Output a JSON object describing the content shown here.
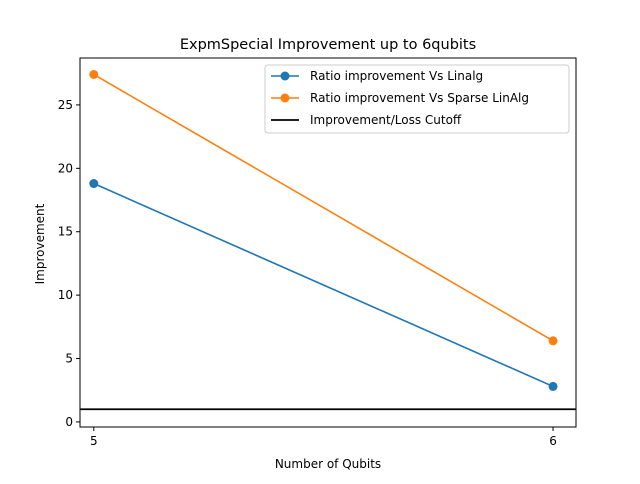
{
  "chart_data": {
    "type": "line",
    "title": "ExpmSpecial Improvement up to 6qubits",
    "xlabel": "Number of Qubits",
    "ylabel": "Improvement",
    "x": [
      5,
      6
    ],
    "xlim": [
      4.97,
      6.05
    ],
    "ylim": [
      -0.4,
      28.7
    ],
    "xticks": [
      5,
      6
    ],
    "xtick_labels": [
      "5",
      "6"
    ],
    "yticks": [
      0,
      5,
      10,
      15,
      20,
      25
    ],
    "ytick_labels": [
      "0",
      "5",
      "10",
      "15",
      "20",
      "25"
    ],
    "grid": false,
    "legend_position": "top-right",
    "series": [
      {
        "name": "Ratio improvement Vs Linalg",
        "values": [
          18.8,
          2.8
        ],
        "color": "#1f77b4",
        "marker": "circle"
      },
      {
        "name": "Ratio improvement Vs Sparse LinAlg",
        "values": [
          27.4,
          6.4
        ],
        "color": "#ff7f0e",
        "marker": "circle"
      }
    ],
    "hlines": [
      {
        "name": "Improvement/Loss Cutoff",
        "y": 1,
        "color": "#000000"
      }
    ]
  }
}
